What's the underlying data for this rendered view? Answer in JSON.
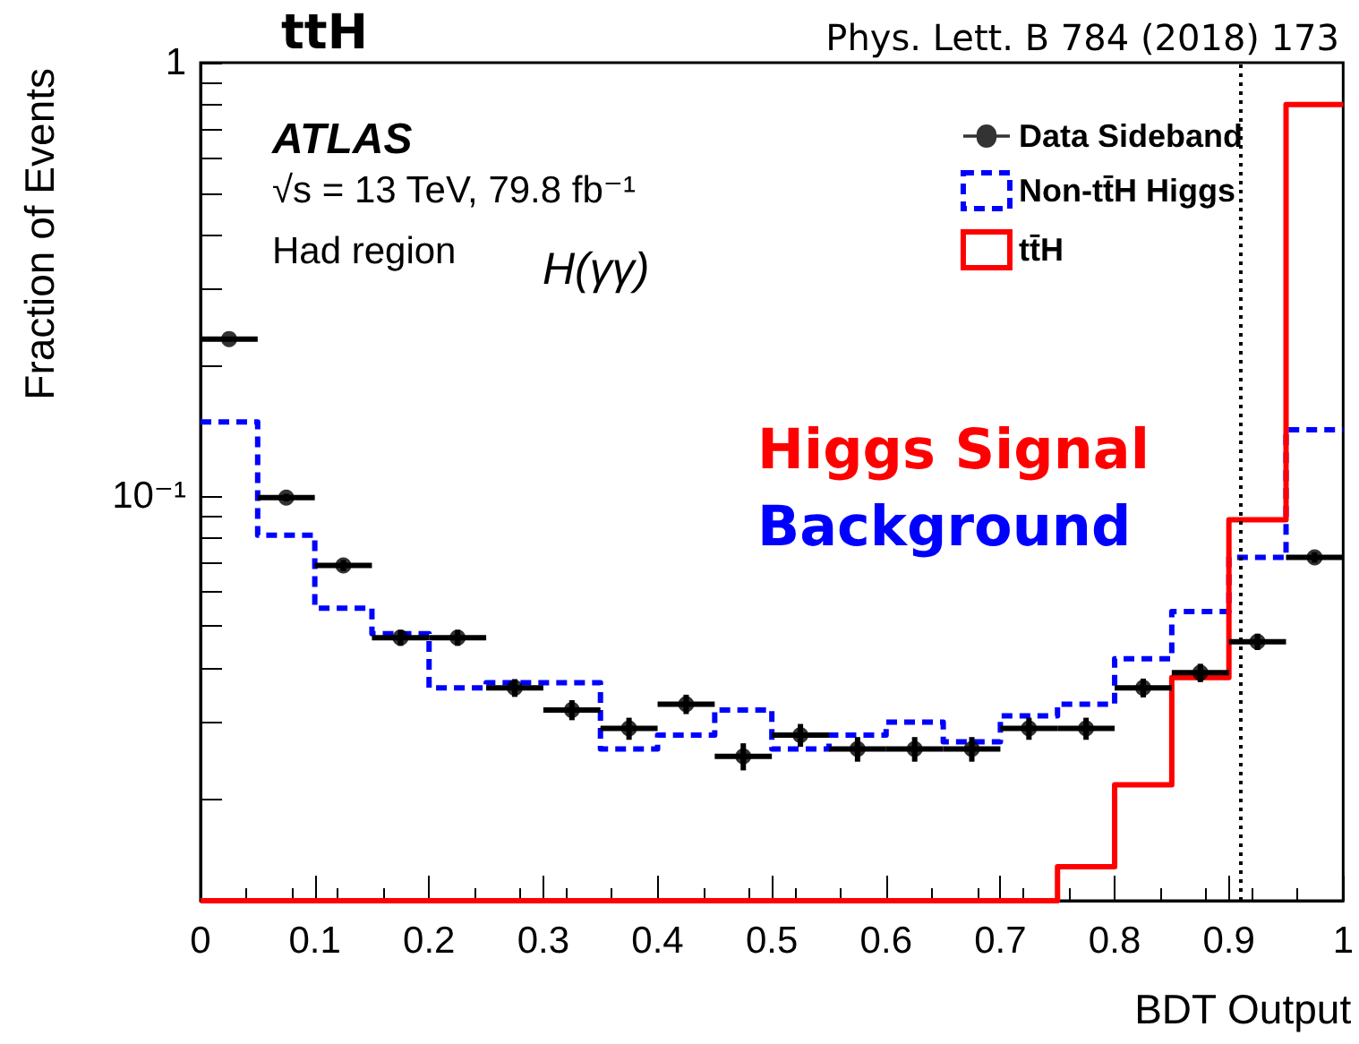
{
  "chart_data": {
    "type": "histogram",
    "title": "ttH",
    "subtitle": "Phys. Lett. B 784 (2018) 173",
    "xlabel": "BDT Output",
    "ylabel": "Fraction of Events",
    "annotations": [
      "ATLAS",
      "√s = 13 TeV, 79.8 fb⁻¹",
      "Had region",
      "H(γγ)",
      "Higgs Signal",
      "Background"
    ],
    "bins": [
      0,
      0.05,
      0.1,
      0.15,
      0.2,
      0.25,
      0.3,
      0.35,
      0.4,
      0.45,
      0.5,
      0.55,
      0.6,
      0.65,
      0.7,
      0.75,
      0.8,
      0.85,
      0.9,
      0.95,
      1
    ],
    "series": [
      {
        "name": "Data Sideband",
        "type": "scatter",
        "color": "#000000",
        "marker": "circle",
        "x": [
          0.025,
          0.075,
          0.125,
          0.175,
          0.225,
          0.275,
          0.325,
          0.375,
          0.425,
          0.475,
          0.525,
          0.575,
          0.625,
          0.675,
          0.725,
          0.775,
          0.825,
          0.875,
          0.925,
          0.975
        ],
        "values": [
          0.23,
          0.099,
          0.069,
          0.047,
          0.047,
          0.036,
          0.032,
          0.029,
          0.033,
          0.025,
          0.028,
          0.026,
          0.026,
          0.026,
          0.029,
          0.029,
          0.036,
          0.039,
          0.046,
          0.072
        ],
        "errors": [
          null,
          0.002,
          0.002,
          0.002,
          0.002,
          0.0017,
          0.0017,
          0.0017,
          0.0017,
          0.0018,
          0.0017,
          0.0017,
          0.0017,
          0.0017,
          0.0017,
          0.0017,
          0.0018,
          0.0019,
          0.002,
          0.002
        ],
        "xerrors": [
          0.025,
          0.025,
          0.025,
          0.025,
          0.025,
          0.025,
          0.025,
          0.025,
          0.025,
          0.025,
          0.025,
          0.025,
          0.025,
          0.025,
          0.025,
          0.025,
          0.025,
          0.025,
          0.025,
          0.025
        ]
      },
      {
        "name": "Non-tt̄H Higgs",
        "color": "#0000ff",
        "line_style": "dashed",
        "values": [
          0.148,
          0.081,
          0.055,
          0.048,
          0.036,
          0.037,
          0.037,
          0.026,
          0.028,
          0.032,
          0.026,
          0.028,
          0.03,
          0.027,
          0.031,
          0.033,
          0.042,
          0.054,
          0.072,
          0.142
        ]
      },
      {
        "name": "tt̄H",
        "color": "#ff0000",
        "line_style": "solid",
        "values": [
          null,
          null,
          null,
          null,
          null,
          null,
          null,
          null,
          null,
          null,
          null,
          null,
          null,
          null,
          null,
          0.0139,
          0.0215,
          0.038,
          0.088,
          0.8
        ]
      }
    ],
    "xlim": [
      0,
      1
    ],
    "xticks": [
      0,
      0.1,
      0.2,
      0.3,
      0.4,
      0.5,
      0.6,
      0.7,
      0.8,
      0.9,
      1
    ],
    "ylim": [
      0.0116,
      1
    ],
    "log": "y",
    "yticks": [
      {
        "value": 0.02,
        "label": null
      },
      {
        "value": 0.03,
        "label": null
      },
      {
        "value": 0.04,
        "label": null
      },
      {
        "value": 0.05,
        "label": null
      },
      {
        "value": 0.06,
        "label": null
      },
      {
        "value": 0.07,
        "label": null
      },
      {
        "value": 0.08,
        "label": null
      },
      {
        "value": 0.09,
        "label": null
      },
      {
        "value": 0.1,
        "label": "10⁻¹"
      },
      {
        "value": 0.2,
        "label": null
      },
      {
        "value": 0.3,
        "label": null
      },
      {
        "value": 0.4,
        "label": null
      },
      {
        "value": 0.5,
        "label": null
      },
      {
        "value": 0.6,
        "label": null
      },
      {
        "value": 0.7,
        "label": null
      },
      {
        "value": 0.8,
        "label": null
      },
      {
        "value": 0.9,
        "label": null
      },
      {
        "value": 1,
        "label": "1"
      }
    ],
    "ref_lines": [
      {
        "axis": "x",
        "value": 0.91,
        "color": "#000000",
        "line_style": "dotted"
      }
    ],
    "legend": "top right",
    "grid": false
  }
}
